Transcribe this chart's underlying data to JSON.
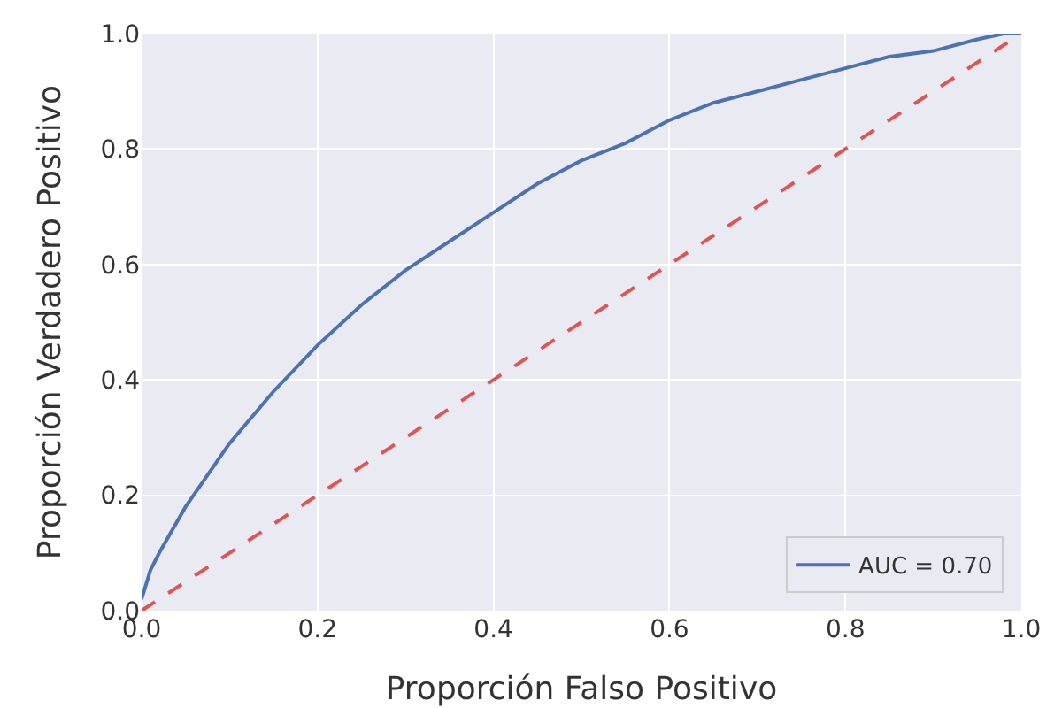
{
  "chart_data": {
    "type": "line",
    "xlabel": "Proporción Falso Positivo",
    "ylabel": "Proporción Verdadero Positivo",
    "xlim": [
      0,
      1
    ],
    "ylim": [
      0,
      1
    ],
    "xticks": [
      {
        "value": 0,
        "label": "0.0"
      },
      {
        "value": 0.2,
        "label": "0.2"
      },
      {
        "value": 0.4,
        "label": "0.4"
      },
      {
        "value": 0.6,
        "label": "0.6"
      },
      {
        "value": 0.8,
        "label": "0.8"
      },
      {
        "value": 1,
        "label": "1.0"
      }
    ],
    "yticks": [
      {
        "value": 0,
        "label": "0.0"
      },
      {
        "value": 0.2,
        "label": "0.2"
      },
      {
        "value": 0.4,
        "label": "0.4"
      },
      {
        "value": 0.6,
        "label": "0.6"
      },
      {
        "value": 0.8,
        "label": "0.8"
      },
      {
        "value": 1,
        "label": "1.0"
      }
    ],
    "grid": true,
    "legend": "bottom right",
    "marker": "none",
    "series": [
      {
        "name": "AUC = 0.70",
        "color": "#4c72b0",
        "line_style": "solid",
        "x": [
          0,
          0.01,
          0.02,
          0.05,
          0.1,
          0.15,
          0.2,
          0.25,
          0.3,
          0.35,
          0.4,
          0.45,
          0.5,
          0.55,
          0.6,
          0.65,
          0.7,
          0.75,
          0.8,
          0.85,
          0.9,
          0.95,
          0.98,
          1
        ],
        "values": [
          0.02,
          0.07,
          0.1,
          0.18,
          0.29,
          0.38,
          0.46,
          0.53,
          0.59,
          0.64,
          0.69,
          0.74,
          0.78,
          0.81,
          0.85,
          0.88,
          0.9,
          0.92,
          0.94,
          0.96,
          0.97,
          0.99,
          1,
          1
        ]
      },
      {
        "color": "#dd5555",
        "line_style": "dashed",
        "x": [
          0,
          1
        ],
        "values": [
          0,
          1
        ]
      }
    ]
  }
}
